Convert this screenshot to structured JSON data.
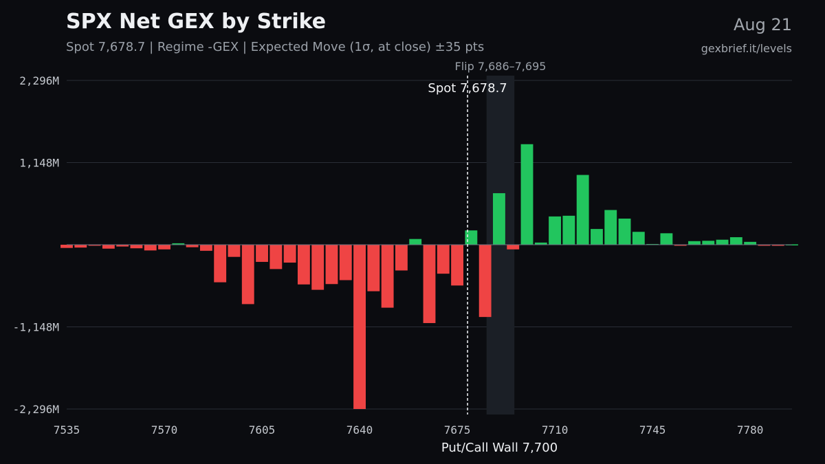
{
  "header": {
    "title": "SPX Net GEX by Strike",
    "subtitle": "Spot 7,678.7 | Regime -GEX | Expected Move (1σ, at close) ±35 pts",
    "date": "Aug 21",
    "source": "gexbrief.it/levels"
  },
  "colors": {
    "positive": "#22c55e",
    "negative": "#ef4444",
    "background": "#0b0c10",
    "grid": "#2a2e36",
    "flip_band": "#1b1f26",
    "zero_line": "#6b7280"
  },
  "chart_data": {
    "type": "bar",
    "title": "SPX Net GEX by Strike",
    "xlabel": "",
    "ylabel": "",
    "unit": "M",
    "xlim": [
      7535,
      7795
    ],
    "ylim": [
      -2296,
      2296
    ],
    "yticks": [
      2296,
      1148,
      -1148,
      -2296
    ],
    "ytick_labels": [
      "2,296M",
      "1,148M",
      "-1,148M",
      "-2,296M"
    ],
    "xticks": [
      7535,
      7570,
      7605,
      7640,
      7675,
      7710,
      7745,
      7780
    ],
    "xtick_labels": [
      "7535",
      "7570",
      "7605",
      "7640",
      "7675",
      "7710",
      "7745",
      "7780"
    ],
    "strikes": [
      7535,
      7540,
      7545,
      7550,
      7555,
      7560,
      7565,
      7570,
      7575,
      7580,
      7585,
      7590,
      7595,
      7600,
      7605,
      7610,
      7615,
      7620,
      7625,
      7630,
      7635,
      7640,
      7645,
      7650,
      7655,
      7660,
      7665,
      7670,
      7675,
      7680,
      7685,
      7690,
      7695,
      7700,
      7705,
      7710,
      7715,
      7720,
      7725,
      7730,
      7735,
      7740,
      7745,
      7750,
      7755,
      7760,
      7765,
      7770,
      7775,
      7780,
      7785,
      7790,
      7795
    ],
    "values": [
      -45,
      -40,
      -10,
      -55,
      -25,
      -50,
      -80,
      -65,
      20,
      -35,
      -85,
      -525,
      -170,
      -830,
      -240,
      -340,
      -250,
      -555,
      -630,
      -550,
      -495,
      -2296,
      -650,
      -880,
      -360,
      80,
      -1095,
      -405,
      -570,
      200,
      -1010,
      720,
      -65,
      1405,
      30,
      395,
      405,
      975,
      220,
      485,
      365,
      180,
      10,
      160,
      -10,
      50,
      55,
      70,
      105,
      40,
      -10,
      -15,
      5
    ],
    "spot": 7678.7,
    "spot_label": "Spot 7,678.7",
    "flip_range": [
      7686,
      7695
    ],
    "flip_label": "Flip 7,686–7,695",
    "wall_label": "Put/Call Wall 7,700",
    "grid": true,
    "legend": "none"
  }
}
